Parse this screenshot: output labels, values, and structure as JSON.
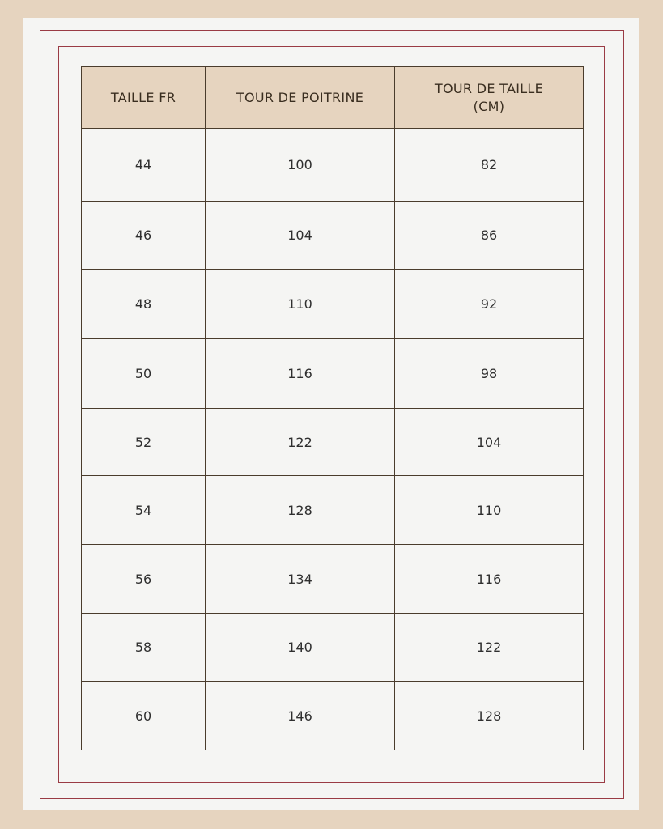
{
  "table": {
    "headers": [
      "TAILLE FR",
      "TOUR DE POITRINE",
      "TOUR DE TAILLE\n(CM)"
    ],
    "header_lines": [
      "TOUR DE TAILLE",
      "(CM)"
    ],
    "rows": [
      [
        "44",
        "100",
        "82"
      ],
      [
        "46",
        "104",
        "86"
      ],
      [
        "48",
        "110",
        "92"
      ],
      [
        "50",
        "116",
        "98"
      ],
      [
        "52",
        "122",
        "104"
      ],
      [
        "54",
        "128",
        "110"
      ],
      [
        "56",
        "134",
        "116"
      ],
      [
        "58",
        "140",
        "122"
      ],
      [
        "60",
        "146",
        "128"
      ]
    ]
  },
  "colors": {
    "background": "#e6d4bf",
    "panel": "#f5f5f3",
    "frame": "#9a3b44",
    "header": "#e6d4bf",
    "grid": "#4a3c2c"
  }
}
